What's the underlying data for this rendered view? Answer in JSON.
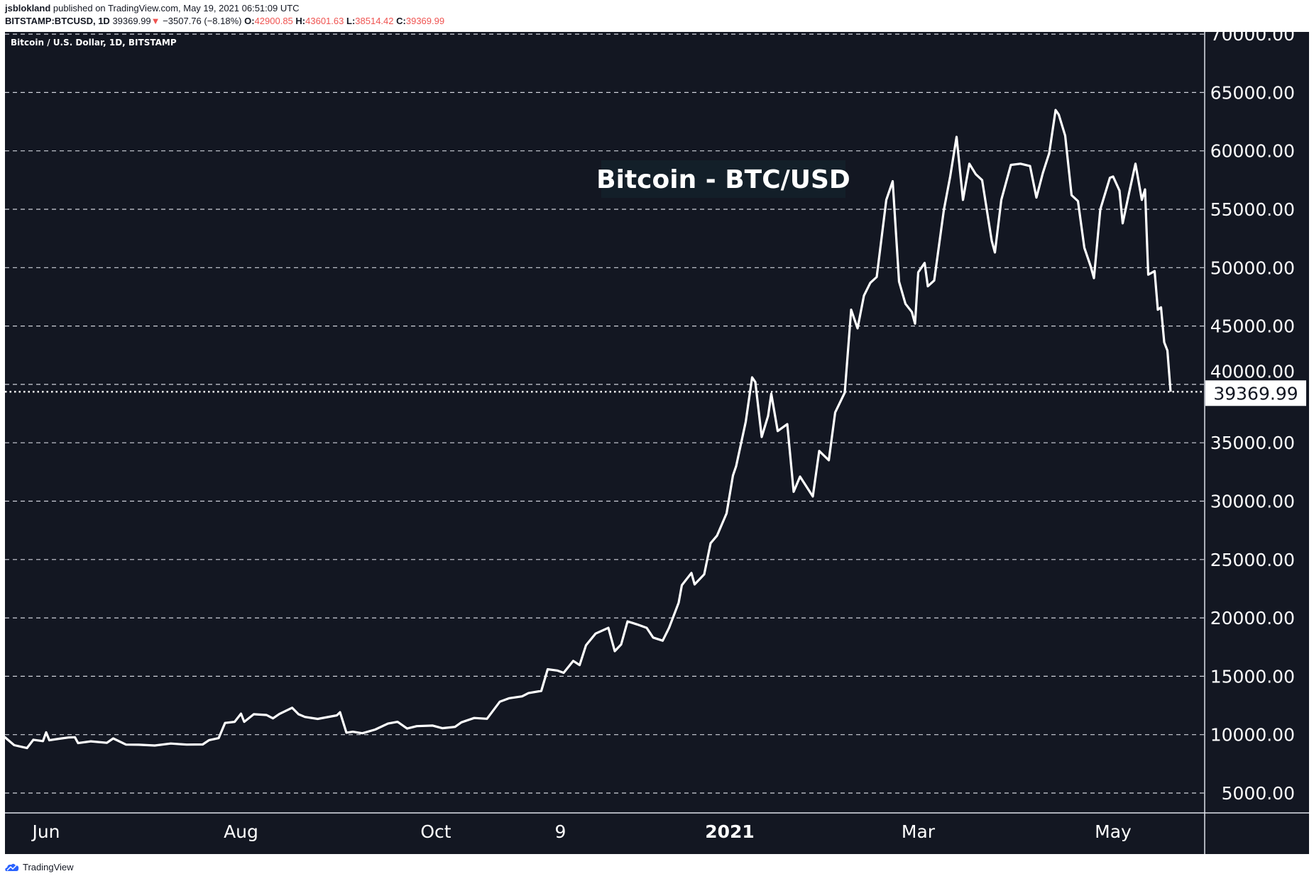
{
  "header": {
    "author": "jsblokland",
    "published": "published on TradingView.com, May 19, 2021 06:51:09 UTC",
    "symbol": "BITSTAMP:BTCUSD, 1D",
    "last": "39369.99",
    "change": "−3507.76 (−8.18%)",
    "o_label": "O:",
    "o": "42900.85",
    "h_label": "H:",
    "h": "43601.63",
    "l_label": "L:",
    "l": "38514.42",
    "c_label": "C:",
    "c": "39369.99",
    "down_color": "#ef5350"
  },
  "footer": {
    "brand": "TradingView"
  },
  "chart_data": {
    "type": "line",
    "title": "Bitcoin - BTC/USD",
    "legend": "Bitcoin / U.S. Dollar, 1D, BITSTAMP",
    "last_price_label": "39369.99",
    "background": "#131722",
    "line_color": "#ffffff",
    "grid": "horizontal dashed",
    "ylim": [
      3000,
      71000
    ],
    "y_ticks": [
      "5000.00",
      "10000.00",
      "15000.00",
      "20000.00",
      "25000.00",
      "30000.00",
      "35000.00",
      "40000.00",
      "45000.00",
      "50000.00",
      "55000.00",
      "60000.00",
      "65000.00",
      "70000.00"
    ],
    "x_ticks": [
      {
        "date": "2020-06-01",
        "label": "Jun"
      },
      {
        "date": "2020-08-01",
        "label": "Aug"
      },
      {
        "date": "2020-10-01",
        "label": "Oct"
      },
      {
        "date": "2020-11-09",
        "label": "9"
      },
      {
        "date": "2021-01-01",
        "label": "2021"
      },
      {
        "date": "2021-03-01",
        "label": "Mar"
      },
      {
        "date": "2021-05-01",
        "label": "May"
      }
    ],
    "series": [
      {
        "points": [
          [
            "2020-05-19",
            9800
          ],
          [
            "2020-05-22",
            9100
          ],
          [
            "2020-05-26",
            8850
          ],
          [
            "2020-05-28",
            9560
          ],
          [
            "2020-05-31",
            9450
          ],
          [
            "2020-06-01",
            10200
          ],
          [
            "2020-06-02",
            9520
          ],
          [
            "2020-06-05",
            9650
          ],
          [
            "2020-06-08",
            9760
          ],
          [
            "2020-06-10",
            9780
          ],
          [
            "2020-06-11",
            9280
          ],
          [
            "2020-06-15",
            9430
          ],
          [
            "2020-06-20",
            9300
          ],
          [
            "2020-06-22",
            9680
          ],
          [
            "2020-06-26",
            9150
          ],
          [
            "2020-06-30",
            9140
          ],
          [
            "2020-07-05",
            9070
          ],
          [
            "2020-07-10",
            9240
          ],
          [
            "2020-07-15",
            9150
          ],
          [
            "2020-07-20",
            9160
          ],
          [
            "2020-07-22",
            9530
          ],
          [
            "2020-07-25",
            9700
          ],
          [
            "2020-07-27",
            11000
          ],
          [
            "2020-07-30",
            11100
          ],
          [
            "2020-08-01",
            11800
          ],
          [
            "2020-08-02",
            11100
          ],
          [
            "2020-08-05",
            11750
          ],
          [
            "2020-08-09",
            11680
          ],
          [
            "2020-08-11",
            11400
          ],
          [
            "2020-08-13",
            11770
          ],
          [
            "2020-08-17",
            12300
          ],
          [
            "2020-08-19",
            11750
          ],
          [
            "2020-08-21",
            11520
          ],
          [
            "2020-08-25",
            11350
          ],
          [
            "2020-08-28",
            11500
          ],
          [
            "2020-08-31",
            11650
          ],
          [
            "2020-09-01",
            11920
          ],
          [
            "2020-09-03",
            10170
          ],
          [
            "2020-09-05",
            10250
          ],
          [
            "2020-09-08",
            10120
          ],
          [
            "2020-09-12",
            10440
          ],
          [
            "2020-09-16",
            10950
          ],
          [
            "2020-09-19",
            11100
          ],
          [
            "2020-09-22",
            10520
          ],
          [
            "2020-09-25",
            10730
          ],
          [
            "2020-09-30",
            10780
          ],
          [
            "2020-10-03",
            10550
          ],
          [
            "2020-10-07",
            10670
          ],
          [
            "2020-10-09",
            11060
          ],
          [
            "2020-10-13",
            11430
          ],
          [
            "2020-10-17",
            11360
          ],
          [
            "2020-10-21",
            12820
          ],
          [
            "2020-10-24",
            13120
          ],
          [
            "2020-10-28",
            13280
          ],
          [
            "2020-10-30",
            13560
          ],
          [
            "2020-11-03",
            13750
          ],
          [
            "2020-11-05",
            15600
          ],
          [
            "2020-11-08",
            15490
          ],
          [
            "2020-11-10",
            15300
          ],
          [
            "2020-11-13",
            16320
          ],
          [
            "2020-11-15",
            15960
          ],
          [
            "2020-11-17",
            17660
          ],
          [
            "2020-11-20",
            18660
          ],
          [
            "2020-11-24",
            19150
          ],
          [
            "2020-11-26",
            17150
          ],
          [
            "2020-11-28",
            17730
          ],
          [
            "2020-11-30",
            19700
          ],
          [
            "2020-12-03",
            19440
          ],
          [
            "2020-12-06",
            19150
          ],
          [
            "2020-12-08",
            18320
          ],
          [
            "2020-12-11",
            18050
          ],
          [
            "2020-12-13",
            19150
          ],
          [
            "2020-12-16",
            21300
          ],
          [
            "2020-12-17",
            22800
          ],
          [
            "2020-12-20",
            23850
          ],
          [
            "2020-12-21",
            22870
          ],
          [
            "2020-12-24",
            23730
          ],
          [
            "2020-12-26",
            26400
          ],
          [
            "2020-12-28",
            27040
          ],
          [
            "2020-12-31",
            28950
          ],
          [
            "2021-01-02",
            32200
          ],
          [
            "2021-01-03",
            33000
          ],
          [
            "2021-01-06",
            36800
          ],
          [
            "2021-01-08",
            40600
          ],
          [
            "2021-01-09",
            40200
          ],
          [
            "2021-01-11",
            35500
          ],
          [
            "2021-01-13",
            37300
          ],
          [
            "2021-01-14",
            39200
          ],
          [
            "2021-01-16",
            36000
          ],
          [
            "2021-01-19",
            36600
          ],
          [
            "2021-01-21",
            30800
          ],
          [
            "2021-01-23",
            32100
          ],
          [
            "2021-01-27",
            30400
          ],
          [
            "2021-01-29",
            34300
          ],
          [
            "2021-02-01",
            33500
          ],
          [
            "2021-02-03",
            37600
          ],
          [
            "2021-02-06",
            39300
          ],
          [
            "2021-02-08",
            46400
          ],
          [
            "2021-02-10",
            44800
          ],
          [
            "2021-02-12",
            47600
          ],
          [
            "2021-02-14",
            48700
          ],
          [
            "2021-02-16",
            49200
          ],
          [
            "2021-02-19",
            55800
          ],
          [
            "2021-02-21",
            57400
          ],
          [
            "2021-02-23",
            48800
          ],
          [
            "2021-02-25",
            46900
          ],
          [
            "2021-02-27",
            46200
          ],
          [
            "2021-02-28",
            45200
          ],
          [
            "2021-03-01",
            49600
          ],
          [
            "2021-03-03",
            50400
          ],
          [
            "2021-03-04",
            48400
          ],
          [
            "2021-03-06",
            48900
          ],
          [
            "2021-03-09",
            54900
          ],
          [
            "2021-03-11",
            57800
          ],
          [
            "2021-03-13",
            61200
          ],
          [
            "2021-03-15",
            55800
          ],
          [
            "2021-03-17",
            58900
          ],
          [
            "2021-03-19",
            58000
          ],
          [
            "2021-03-21",
            57500
          ],
          [
            "2021-03-24",
            52300
          ],
          [
            "2021-03-25",
            51300
          ],
          [
            "2021-03-27",
            55800
          ],
          [
            "2021-03-30",
            58800
          ],
          [
            "2021-04-02",
            58900
          ],
          [
            "2021-04-05",
            58700
          ],
          [
            "2021-04-07",
            56000
          ],
          [
            "2021-04-09",
            58100
          ],
          [
            "2021-04-11",
            59800
          ],
          [
            "2021-04-13",
            63500
          ],
          [
            "2021-04-14",
            63100
          ],
          [
            "2021-04-16",
            61300
          ],
          [
            "2021-04-18",
            56200
          ],
          [
            "2021-04-20",
            55700
          ],
          [
            "2021-04-22",
            51700
          ],
          [
            "2021-04-24",
            50100
          ],
          [
            "2021-04-25",
            49100
          ],
          [
            "2021-04-27",
            55000
          ],
          [
            "2021-04-30",
            57700
          ],
          [
            "2021-05-01",
            57800
          ],
          [
            "2021-05-03",
            56600
          ],
          [
            "2021-05-04",
            53800
          ],
          [
            "2021-05-06",
            56400
          ],
          [
            "2021-05-08",
            58900
          ],
          [
            "2021-05-10",
            55800
          ],
          [
            "2021-05-11",
            56700
          ],
          [
            "2021-05-12",
            49400
          ],
          [
            "2021-05-14",
            49700
          ],
          [
            "2021-05-15",
            46400
          ],
          [
            "2021-05-16",
            46600
          ],
          [
            "2021-05-17",
            43600
          ],
          [
            "2021-05-18",
            42900
          ],
          [
            "2021-05-19",
            39369.99
          ]
        ]
      }
    ]
  }
}
